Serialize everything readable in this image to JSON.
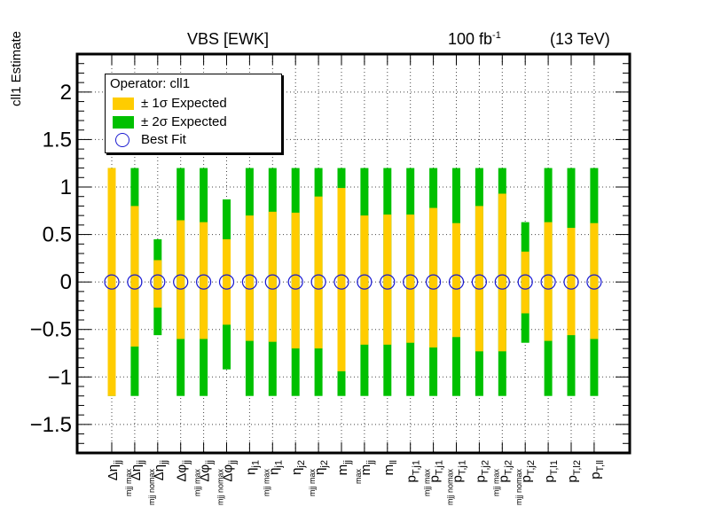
{
  "header": {
    "process": "VBS [EWK]",
    "luminosity": "100 fb",
    "luminosity_exp": "-1",
    "energy": "(13 TeV)"
  },
  "legend": {
    "title": "Operator: cll1",
    "one_sigma": "± 1σ Expected",
    "two_sigma": "± 2σ Expected",
    "best_fit": "Best Fit"
  },
  "colors": {
    "one_sigma": "#ffcc00",
    "two_sigma": "#00c000",
    "best_fit": "#1a1ad0"
  },
  "chart_data": {
    "type": "scatter",
    "ylabel": "cll1 Estimate",
    "ylim": [
      -1.8,
      2.4
    ],
    "yticks": [
      -1.5,
      -1,
      -0.5,
      0,
      0.5,
      1,
      1.5,
      2
    ],
    "ytick_labels": [
      "−1.5",
      "−1",
      "−0.5",
      "0",
      "0.5",
      "1",
      "1.5",
      "2"
    ],
    "grid": true,
    "legend_position": "top-left",
    "categories": [
      {
        "base": "Δη",
        "sub": "jj",
        "sub2": ""
      },
      {
        "base": "Δη",
        "sub": "jj",
        "sub2": "mjj max"
      },
      {
        "base": "Δη",
        "sub": "jj",
        "sub2": "mjj nomax"
      },
      {
        "base": "Δφ",
        "sub": "jj",
        "sub2": ""
      },
      {
        "base": "Δφ",
        "sub": "jj",
        "sub2": "mjj max"
      },
      {
        "base": "Δφ",
        "sub": "jj",
        "sub2": "mjj nomax"
      },
      {
        "base": "η",
        "sub": "j1",
        "sub2": ""
      },
      {
        "base": "η",
        "sub": "j1",
        "sub2": "mjj max"
      },
      {
        "base": "η",
        "sub": "j2",
        "sub2": ""
      },
      {
        "base": "η",
        "sub": "j2",
        "sub2": "mjj max"
      },
      {
        "base": "m",
        "sub": "jj",
        "sub2": ""
      },
      {
        "base": "m",
        "sub": "jj",
        "sub2": "max"
      },
      {
        "base": "m",
        "sub": "ll",
        "sub2": ""
      },
      {
        "base": "p",
        "sub": "T,j1",
        "sub2": ""
      },
      {
        "base": "p",
        "sub": "T,j1",
        "sub2": "mjj max"
      },
      {
        "base": "p",
        "sub": "T,j1",
        "sub2": "mjj nomax"
      },
      {
        "base": "p",
        "sub": "T,j2",
        "sub2": ""
      },
      {
        "base": "p",
        "sub": "T,j2",
        "sub2": "mjj max"
      },
      {
        "base": "p",
        "sub": "T,j2",
        "sub2": "mjj nomax"
      },
      {
        "base": "p",
        "sub": "T,l1",
        "sub2": ""
      },
      {
        "base": "p",
        "sub": "T,l2",
        "sub2": ""
      },
      {
        "base": "p",
        "sub": "T,ll",
        "sub2": ""
      }
    ],
    "series": [
      {
        "name": "± 2σ Expected",
        "low": [
          -1.2,
          -1.2,
          -0.56,
          -1.2,
          -1.2,
          -0.92,
          -1.2,
          -1.2,
          -1.2,
          -1.2,
          -1.2,
          -1.2,
          -1.2,
          -1.2,
          -1.2,
          -1.2,
          -1.2,
          -1.2,
          -0.64,
          -1.2,
          -1.2,
          -1.2
        ],
        "high": [
          1.2,
          1.2,
          0.45,
          1.2,
          1.2,
          0.87,
          1.2,
          1.2,
          1.2,
          1.2,
          1.2,
          1.2,
          1.2,
          1.2,
          1.2,
          1.2,
          1.2,
          1.2,
          0.63,
          1.2,
          1.2,
          1.2
        ]
      },
      {
        "name": "± 1σ Expected",
        "low": [
          -1.2,
          -0.68,
          -0.27,
          -0.6,
          -0.6,
          -0.45,
          -0.62,
          -0.63,
          -0.7,
          -0.7,
          -0.94,
          -0.66,
          -0.66,
          -0.64,
          -0.69,
          -0.58,
          -0.73,
          -0.73,
          -0.33,
          -0.62,
          -0.56,
          -0.6
        ],
        "high": [
          1.2,
          0.8,
          0.23,
          0.65,
          0.63,
          0.45,
          0.7,
          0.74,
          0.73,
          0.9,
          0.99,
          0.7,
          0.71,
          0.71,
          0.78,
          0.62,
          0.8,
          0.93,
          0.32,
          0.63,
          0.57,
          0.62
        ]
      },
      {
        "name": "Best Fit",
        "values": [
          0,
          0,
          0,
          0,
          0,
          0,
          0,
          0,
          0,
          0,
          0,
          0,
          0,
          0,
          0,
          0,
          0,
          0,
          0,
          0,
          0,
          0
        ]
      }
    ]
  }
}
